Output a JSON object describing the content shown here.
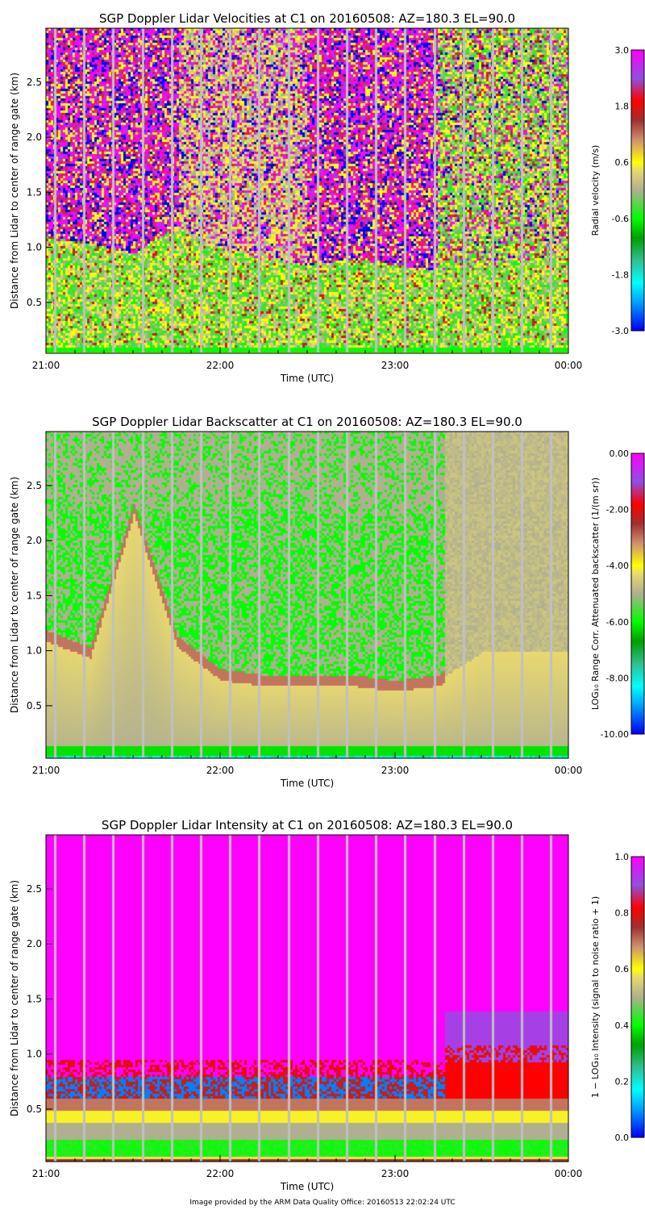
{
  "footer": "Image provided by the ARM Data Quality Office: 20160513 22:02:24 UTC",
  "chart_data": [
    {
      "type": "heatmap",
      "title": "SGP Doppler Lidar Velocities at C1 on 20160508: AZ=180.3 EL=90.0",
      "xlabel": "Time (UTC)",
      "ylabel": "Distance from Lidar to center of range gate (km)",
      "x_ticks": [
        "21:00",
        "22:00",
        "23:00",
        "00:00"
      ],
      "y_ticks": [
        "0.5",
        "1.0",
        "1.5",
        "2.0",
        "2.5"
      ],
      "ylim": [
        0.04,
        2.99
      ],
      "colorbar": {
        "label": "Radial velocity (m/s)",
        "ticks": [
          "-3.0",
          "-1.8",
          "-0.6",
          "0.6",
          "1.8",
          "3.0"
        ],
        "range": [
          -3.0,
          3.0
        ]
      }
    },
    {
      "type": "heatmap",
      "title": "SGP Doppler Lidar Backscatter at C1 on 20160508: AZ=180.3 EL=90.0",
      "xlabel": "Time (UTC)",
      "ylabel": "Distance from Lidar to center of range gate (km)",
      "x_ticks": [
        "21:00",
        "22:00",
        "23:00",
        "00:00"
      ],
      "y_ticks": [
        "0.5",
        "1.0",
        "1.5",
        "2.0",
        "2.5"
      ],
      "ylim": [
        0.04,
        2.99
      ],
      "colorbar": {
        "label": "LOG₁₀ Range Corr. Attenuated backscatter (1/(m sr))",
        "ticks": [
          "-10.00",
          "-8.00",
          "-6.00",
          "-4.00",
          "-2.00",
          "0.00"
        ],
        "range": [
          -10.0,
          0.0
        ]
      }
    },
    {
      "type": "heatmap",
      "title": "SGP Doppler Lidar Intensity at C1 on 20160508: AZ=180.3 EL=90.0",
      "xlabel": "Time (UTC)",
      "ylabel": "Distance from Lidar to center of range gate (km)",
      "x_ticks": [
        "21:00",
        "22:00",
        "23:00",
        "00:00"
      ],
      "y_ticks": [
        "0.5",
        "1.0",
        "1.5",
        "2.0",
        "2.5"
      ],
      "ylim": [
        0.04,
        2.99
      ],
      "colorbar": {
        "label": "1 − LOG₁₀ Intensity (signal to noise ratio + 1)",
        "ticks": [
          "0.0",
          "0.2",
          "0.4",
          "0.6",
          "0.8",
          "1.0"
        ],
        "range": [
          0.0,
          1.0
        ]
      }
    }
  ],
  "colormap": [
    "#0000ff",
    "#00a0ff",
    "#00ffff",
    "#30c090",
    "#00a000",
    "#00ff00",
    "#b0b090",
    "#e8d870",
    "#ffff00",
    "#d09070",
    "#a03030",
    "#ff0000",
    "#9050e0",
    "#ff00ff"
  ],
  "missing_color": "#c0c0c0"
}
